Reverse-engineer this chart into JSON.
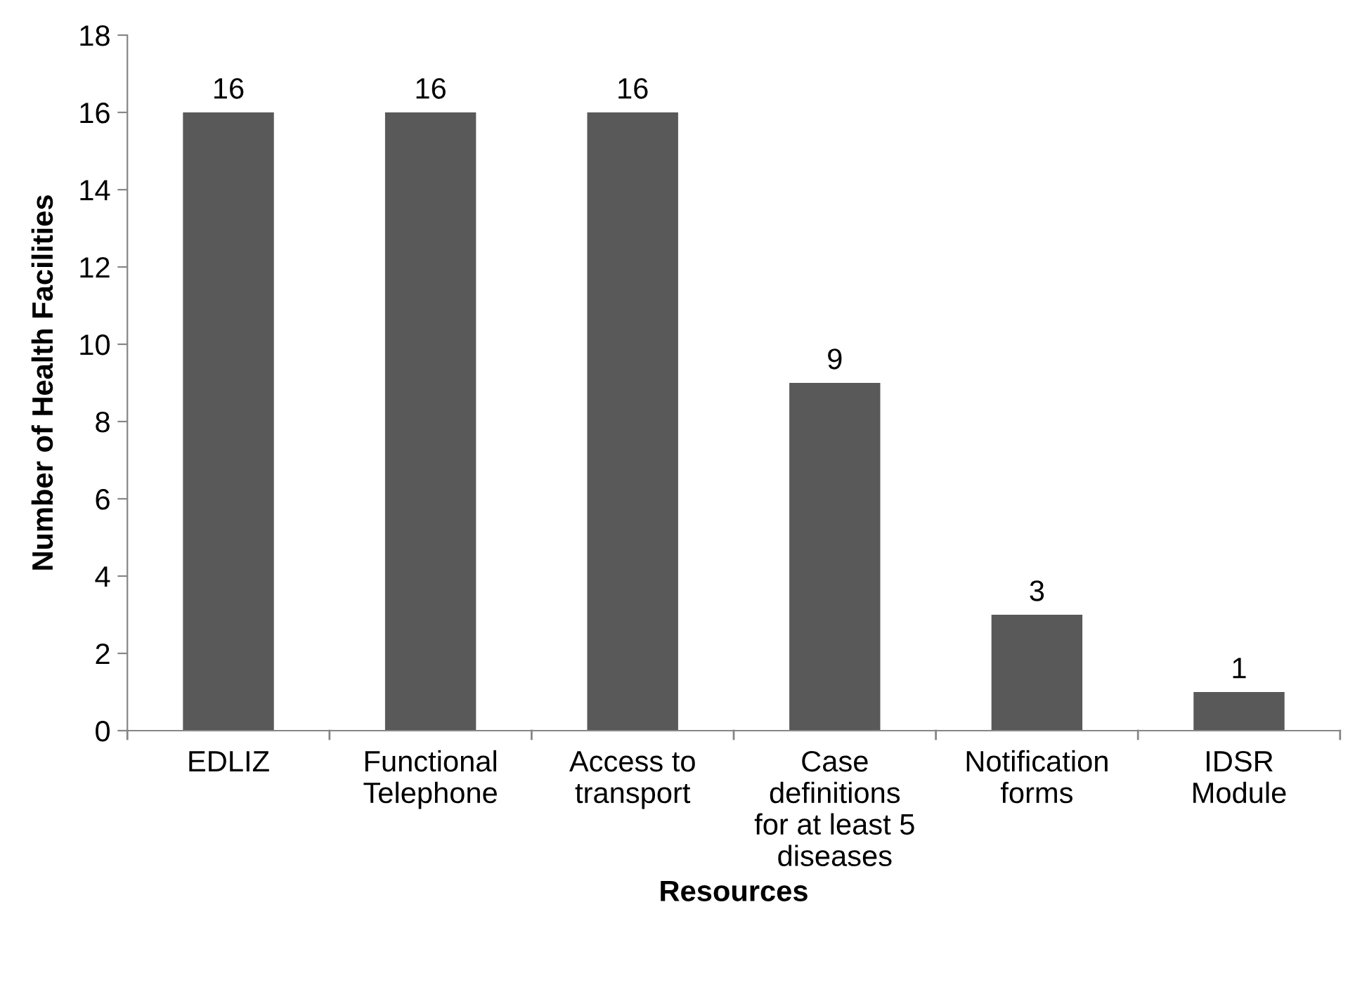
{
  "chart_data": {
    "type": "bar",
    "categories": [
      "EDLIZ",
      "Functional\nTelephone",
      "Access to\ntransport",
      "Case\ndefinitions\nfor at least 5\ndiseases",
      "Notification\nforms",
      "IDSR\nModule"
    ],
    "values": [
      16,
      16,
      16,
      9,
      3,
      1
    ],
    "color": "#595959",
    "xlabel": "Resources",
    "ylabel": "Number of Health Facilities",
    "ylim": [
      0,
      18
    ],
    "yticks": [
      0,
      2,
      4,
      6,
      8,
      10,
      12,
      14,
      16,
      18
    ],
    "data_labels": true,
    "grid": false,
    "legend": false
  }
}
